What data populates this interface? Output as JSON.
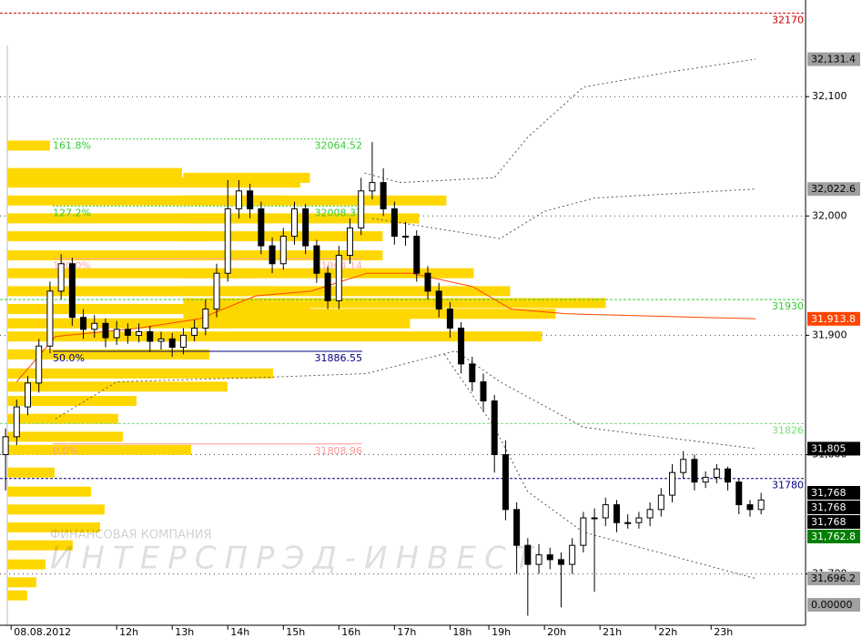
{
  "chart_data": {
    "type": "candlestick",
    "ylim": [
      31657,
      32181
    ],
    "xlim": [
      -1,
      144
    ],
    "yticks": [
      {
        "value": 32100,
        "label": "32,100"
      },
      {
        "value": 32000,
        "label": "32,000"
      },
      {
        "value": 31900,
        "label": "31,900"
      },
      {
        "value": 31800,
        "label": "31,800"
      },
      {
        "value": 31700,
        "label": "31,700"
      }
    ],
    "xticks": [
      {
        "value": 1,
        "label": "08.08.2012"
      },
      {
        "value": 20,
        "label": "12h"
      },
      {
        "value": 30,
        "label": "13h"
      },
      {
        "value": 40,
        "label": "14h"
      },
      {
        "value": 50,
        "label": "15h"
      },
      {
        "value": 60,
        "label": "16h"
      },
      {
        "value": 70,
        "label": "17h"
      },
      {
        "value": 80,
        "label": "18h"
      },
      {
        "value": 87,
        "label": "19h"
      },
      {
        "value": 97,
        "label": "20h"
      },
      {
        "value": 107,
        "label": "21h"
      },
      {
        "value": 117,
        "label": "22h"
      },
      {
        "value": 127,
        "label": "23h"
      }
    ],
    "grid": true,
    "up_color": "#ffffff",
    "down_color": "#000000",
    "x": [
      0,
      2,
      4,
      6,
      8,
      10,
      12,
      14,
      16,
      18,
      20,
      22,
      24,
      26,
      28,
      30,
      32,
      34,
      36,
      38,
      40,
      42,
      44,
      46,
      48,
      50,
      52,
      54,
      56,
      58,
      60,
      62,
      64,
      66,
      68,
      70,
      72,
      74,
      76,
      78,
      80,
      82,
      84,
      86,
      88,
      90,
      92,
      94,
      96,
      98,
      100,
      102,
      104,
      106,
      108,
      110,
      112,
      114,
      116,
      118,
      120,
      122,
      124,
      126,
      128,
      130,
      132,
      134,
      136
    ],
    "candles": [
      [
        31800,
        31822,
        31770,
        31815
      ],
      [
        31815,
        31846,
        31808,
        31840
      ],
      [
        31840,
        31866,
        31833,
        31860
      ],
      [
        31860,
        31897,
        31852,
        31891
      ],
      [
        31891,
        31945,
        31885,
        31937
      ],
      [
        31937,
        31968,
        31930,
        31960
      ],
      [
        31960,
        31965,
        31908,
        31915
      ],
      [
        31915,
        31922,
        31897,
        31905
      ],
      [
        31905,
        31917,
        31898,
        31910
      ],
      [
        31910,
        31914,
        31890,
        31898
      ],
      [
        31898,
        31912,
        31892,
        31905
      ],
      [
        31905,
        31910,
        31893,
        31900
      ],
      [
        31900,
        31910,
        31894,
        31903
      ],
      [
        31903,
        31908,
        31886,
        31895
      ],
      [
        31895,
        31903,
        31888,
        31897
      ],
      [
        31897,
        31902,
        31882,
        31890
      ],
      [
        31890,
        31906,
        31884,
        31900
      ],
      [
        31900,
        31913,
        31895,
        31906
      ],
      [
        31906,
        31930,
        31900,
        31922
      ],
      [
        31922,
        31960,
        31915,
        31952
      ],
      [
        31952,
        32030,
        31945,
        32006
      ],
      [
        32006,
        32030,
        31998,
        32021
      ],
      [
        32021,
        32027,
        31998,
        32006
      ],
      [
        32006,
        32012,
        31968,
        31975
      ],
      [
        31975,
        31982,
        31952,
        31960
      ],
      [
        31960,
        31990,
        31955,
        31983
      ],
      [
        31983,
        32012,
        31976,
        32006
      ],
      [
        32006,
        32010,
        31968,
        31975
      ],
      [
        31975,
        31980,
        31944,
        31952
      ],
      [
        31952,
        31958,
        31922,
        31929
      ],
      [
        31929,
        31975,
        31922,
        31967
      ],
      [
        31967,
        31998,
        31960,
        31990
      ],
      [
        31990,
        32032,
        31984,
        32021
      ],
      [
        32021,
        32062,
        32014,
        32028
      ],
      [
        32028,
        32040,
        32000,
        32006
      ],
      [
        32006,
        32012,
        31976,
        31983
      ],
      [
        31983,
        31995,
        31975,
        31983
      ],
      [
        31983,
        31988,
        31945,
        31952
      ],
      [
        31952,
        31958,
        31930,
        31937
      ],
      [
        31937,
        31944,
        31915,
        31922
      ],
      [
        31922,
        31928,
        31898,
        31906
      ],
      [
        31906,
        31911,
        31868,
        31876
      ],
      [
        31876,
        31882,
        31853,
        31861
      ],
      [
        31861,
        31868,
        31836,
        31845
      ],
      [
        31845,
        31850,
        31785,
        31800
      ],
      [
        31800,
        31812,
        31745,
        31754
      ],
      [
        31754,
        31760,
        31700,
        31724
      ],
      [
        31724,
        31730,
        31665,
        31708
      ],
      [
        31708,
        31725,
        31700,
        31716
      ],
      [
        31716,
        31722,
        31704,
        31712
      ],
      [
        31712,
        31718,
        31672,
        31708
      ],
      [
        31708,
        31730,
        31700,
        31724
      ],
      [
        31724,
        31752,
        31718,
        31747
      ],
      [
        31747,
        31755,
        31685,
        31747
      ],
      [
        31747,
        31764,
        31740,
        31758
      ],
      [
        31758,
        31762,
        31735,
        31743
      ],
      [
        31743,
        31750,
        31738,
        31743
      ],
      [
        31743,
        31752,
        31738,
        31747
      ],
      [
        31747,
        31760,
        31740,
        31754
      ],
      [
        31754,
        31772,
        31748,
        31766
      ],
      [
        31766,
        31792,
        31760,
        31785
      ],
      [
        31785,
        31803,
        31780,
        31796
      ],
      [
        31796,
        31800,
        31770,
        31777
      ],
      [
        31777,
        31786,
        31772,
        31781
      ],
      [
        31781,
        31792,
        31776,
        31788
      ],
      [
        31788,
        31790,
        31770,
        31777
      ],
      [
        31777,
        31780,
        31750,
        31758
      ],
      [
        31758,
        31762,
        31748,
        31754
      ],
      [
        31754,
        31768,
        31750,
        31762
      ]
    ],
    "profiles": [
      {
        "color": "#ffd700",
        "start": 0.3,
        "prices": [
          32059,
          32036,
          32028,
          32013,
          31998,
          31983,
          31967,
          31952,
          31937,
          31922,
          31910,
          31899,
          31884,
          31868,
          31857,
          31845,
          31830,
          31815,
          31804,
          31785,
          31769,
          31754,
          31739,
          31724,
          31708,
          31693,
          31682
        ],
        "values": [
          47,
          192,
          322,
          302,
          252,
          222,
          222,
          272,
          292,
          332,
          242,
          192,
          222,
          292,
          242,
          142,
          122,
          127,
          202,
          52,
          92,
          107,
          102,
          72,
          42,
          32,
          22
        ]
      },
      {
        "color": "#ffd700",
        "start": 32,
        "prices": [
          32032,
          32013,
          31998,
          31983,
          31967,
          31952,
          31937,
          31927,
          31918,
          31910,
          31899
        ],
        "values": [
          139,
          289,
          259,
          219,
          219,
          319,
          359,
          464,
          409,
          249,
          394
        ]
      }
    ],
    "series": [
      {
        "color": "#555555",
        "dash": "2,3",
        "x": [
          64.6,
          71,
          88,
          94,
          104,
          120,
          135
        ],
        "values": [
          32036,
          32028,
          32032,
          32066,
          32108,
          32121,
          32131.4
        ]
      },
      {
        "color": "#555555",
        "dash": "2,3",
        "x": [
          66,
          89,
          97,
          106,
          135
        ],
        "values": [
          31998,
          31981,
          32004,
          32015,
          32022.6
        ]
      },
      {
        "color": "#555555",
        "dash": "2,3",
        "x": [
          9,
          20,
          48,
          65,
          81,
          89,
          104,
          135
        ],
        "values": [
          31830,
          31861,
          31865,
          31868,
          31887,
          31861,
          31823,
          31805
        ]
      },
      {
        "color": "#555555",
        "dash": "2,3",
        "x": [
          79,
          88,
          94,
          104,
          135
        ],
        "values": [
          31884,
          31823,
          31769,
          31735,
          31696.2
        ]
      },
      {
        "color": "#ff4500",
        "dash": "none",
        "x": [
          2,
          9,
          24,
          35,
          45,
          55,
          65,
          73,
          84,
          91,
          101,
          135
        ],
        "values": [
          31861,
          31899,
          31906,
          31914,
          31933,
          31937,
          31952,
          31952,
          31941,
          31922,
          31918,
          31913.8
        ]
      }
    ],
    "levels": [
      {
        "value": 32170,
        "color": "#cc0000"
      },
      {
        "value": 31930,
        "color": "#33cc33"
      },
      {
        "value": 31826,
        "color": "#77dd77"
      },
      {
        "value": 31780,
        "color": "#000080"
      }
    ],
    "fibs": [
      {
        "label": "161.8%",
        "value": 32064.52,
        "color": "#33cc33"
      },
      {
        "label": "127.2%",
        "value": 32008.37,
        "color": "#33cc33"
      },
      {
        "label": "100.0%",
        "value": 31964.14,
        "color": "#ffaaaa"
      },
      {
        "label": "50.0%",
        "value": 31886.55,
        "color": "#000080"
      },
      {
        "label": "0.0%",
        "value": 31808.96,
        "color": "#ff9999"
      }
    ],
    "price_labels": [
      {
        "value": 32131.4,
        "label": "32,131.4",
        "color": "#a0a0a0",
        "text_color": "#000000"
      },
      {
        "value": 32022.6,
        "label": "32,022.6",
        "color": "#a0a0a0",
        "text_color": "#000000"
      },
      {
        "value": 31913.8,
        "label": "31,913.8",
        "color": "#ff4500",
        "text_color": "#ffffff"
      },
      {
        "value": 31805,
        "label": "31,805",
        "color": "#000000",
        "text_color": "#ffffff"
      },
      {
        "value": 31768,
        "label": "31,768",
        "color": "#000000",
        "text_color": "#ffffff"
      },
      {
        "value": 31768,
        "label": "31,768",
        "color": "#000000",
        "text_color": "#ffffff"
      },
      {
        "value": 31768,
        "label": "31,768",
        "color": "#000000",
        "text_color": "#ffffff"
      },
      {
        "value": 31762.8,
        "label": "31,762.8",
        "color": "#008000",
        "text_color": "#ffffff"
      },
      {
        "value": 31696.2,
        "label": "31,696.2",
        "color": "#a0a0a0",
        "text_color": "#000000"
      },
      {
        "value": 0,
        "label": "0.00000",
        "color": "#a0a0a0",
        "text_color": "#000000"
      }
    ],
    "watermark": [
      "ФИНАНСОВАЯ КОМПАНИЯ",
      "ИНТЕРСПРЭД-ИНВЕСТ"
    ]
  }
}
